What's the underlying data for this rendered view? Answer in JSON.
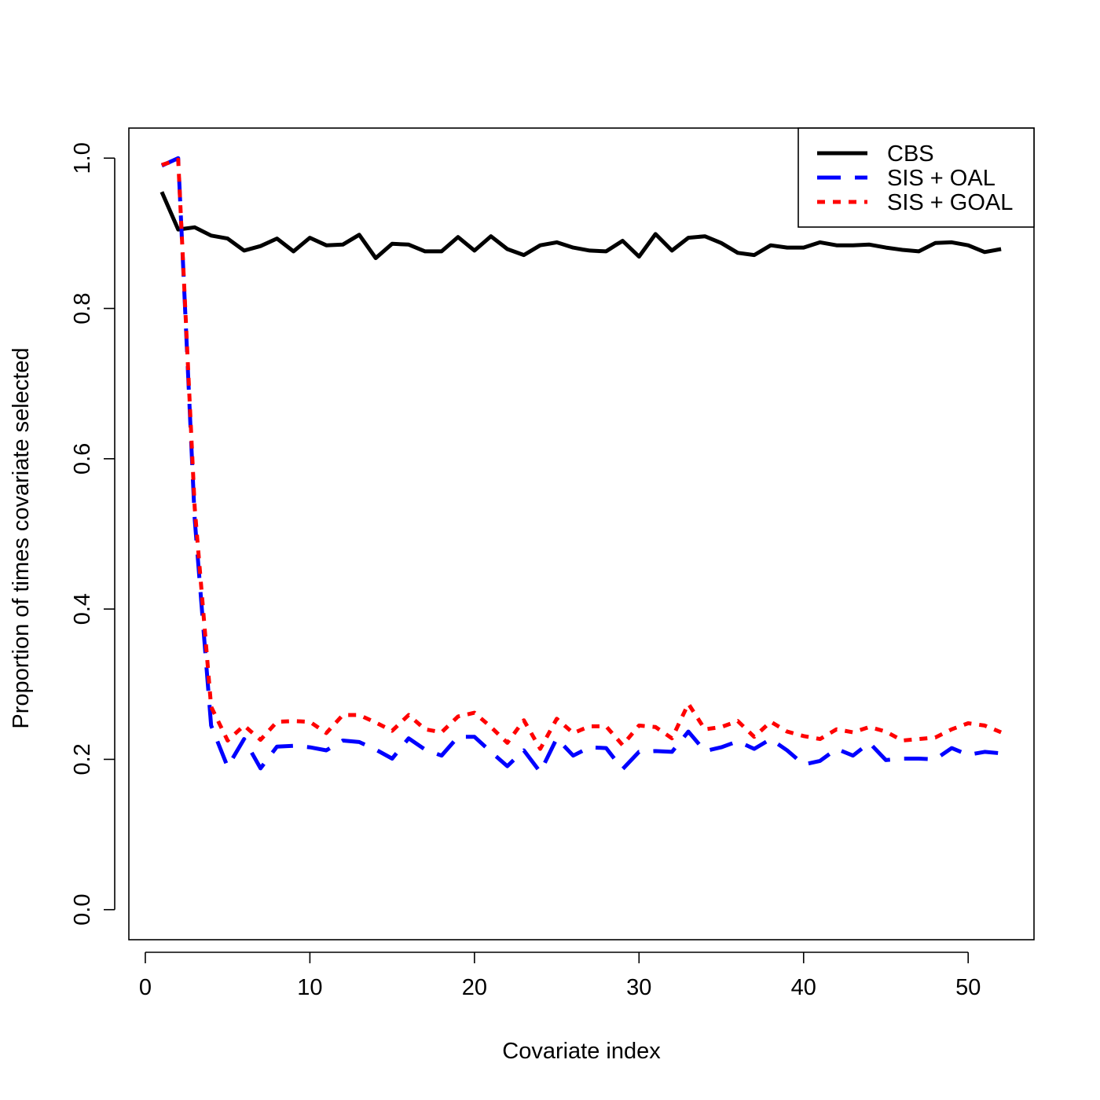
{
  "chart_data": {
    "type": "line",
    "title": "",
    "xlabel": "Covariate index",
    "ylabel": "Proportion of times covariate selected",
    "xlim": [
      -1,
      54
    ],
    "ylim": [
      -0.04,
      1.04
    ],
    "x_ticks": [
      0,
      10,
      20,
      30,
      40,
      50
    ],
    "x_tick_labels": [
      "0",
      "10",
      "20",
      "30",
      "40",
      "50"
    ],
    "y_ticks": [
      0.0,
      0.2,
      0.4,
      0.6,
      0.8,
      1.0
    ],
    "y_tick_labels": [
      "0.0",
      "0.2",
      "0.4",
      "0.6",
      "0.8",
      "1.0"
    ],
    "grid": false,
    "legend_position": "top-right",
    "x": [
      1,
      2,
      3,
      4,
      5,
      6,
      7,
      8,
      9,
      10,
      11,
      12,
      13,
      14,
      15,
      16,
      17,
      18,
      19,
      20,
      21,
      22,
      23,
      24,
      25,
      26,
      27,
      28,
      29,
      30,
      31,
      32,
      33,
      34,
      35,
      36,
      37,
      38,
      39,
      40,
      41,
      42,
      43,
      44,
      45,
      46,
      47,
      48,
      49,
      50,
      51,
      52
    ],
    "series": [
      {
        "name": "CBS",
        "color": "#000000",
        "dash": "solid",
        "values": [
          0.955,
          0.905,
          0.908,
          0.897,
          0.893,
          0.877,
          0.883,
          0.893,
          0.876,
          0.894,
          0.884,
          0.885,
          0.898,
          0.867,
          0.886,
          0.885,
          0.876,
          0.876,
          0.895,
          0.877,
          0.896,
          0.879,
          0.871,
          0.884,
          0.888,
          0.881,
          0.877,
          0.876,
          0.89,
          0.869,
          0.899,
          0.877,
          0.894,
          0.896,
          0.887,
          0.874,
          0.871,
          0.884,
          0.881,
          0.881,
          0.888,
          0.884,
          0.884,
          0.885,
          0.881,
          0.878,
          0.876,
          0.887,
          0.888,
          0.884,
          0.875,
          0.879
        ]
      },
      {
        "name": "SIS + OAL",
        "color": "#0000ff",
        "dash": "longdash",
        "values": [
          0.99,
          1.0,
          0.52,
          0.245,
          0.19,
          0.227,
          0.188,
          0.217,
          0.218,
          0.216,
          0.212,
          0.225,
          0.223,
          0.213,
          0.201,
          0.228,
          0.213,
          0.205,
          0.23,
          0.23,
          0.21,
          0.191,
          0.212,
          0.183,
          0.228,
          0.205,
          0.216,
          0.215,
          0.187,
          0.21,
          0.211,
          0.21,
          0.237,
          0.211,
          0.216,
          0.224,
          0.214,
          0.227,
          0.212,
          0.193,
          0.198,
          0.214,
          0.205,
          0.222,
          0.199,
          0.201,
          0.201,
          0.2,
          0.215,
          0.206,
          0.21,
          0.208
        ]
      },
      {
        "name": "SIS + GOAL",
        "color": "#ff0000",
        "dash": "dotted",
        "values": [
          0.991,
          0.998,
          0.535,
          0.27,
          0.225,
          0.245,
          0.226,
          0.25,
          0.251,
          0.25,
          0.235,
          0.259,
          0.259,
          0.249,
          0.238,
          0.259,
          0.24,
          0.236,
          0.257,
          0.262,
          0.243,
          0.222,
          0.252,
          0.214,
          0.254,
          0.235,
          0.244,
          0.244,
          0.219,
          0.245,
          0.243,
          0.228,
          0.274,
          0.24,
          0.243,
          0.251,
          0.23,
          0.25,
          0.237,
          0.231,
          0.227,
          0.24,
          0.236,
          0.243,
          0.237,
          0.225,
          0.227,
          0.229,
          0.24,
          0.248,
          0.245,
          0.236
        ]
      }
    ]
  }
}
